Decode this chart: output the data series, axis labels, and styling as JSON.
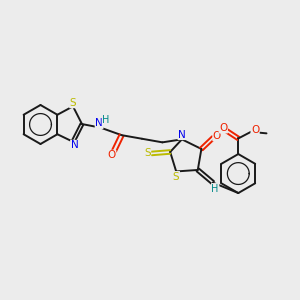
{
  "bg_color": "#ececec",
  "figsize": [
    3.0,
    3.0
  ],
  "dpi": 100,
  "bond_color": "#1a1a1a",
  "bond_lw": 1.4,
  "aromatic_lw": 0.9,
  "N_color": "#0000ee",
  "S_color": "#bbbb00",
  "O_color": "#ee2200",
  "H_color": "#008888",
  "font_size": 7.0,
  "xlim": [
    0,
    10
  ],
  "ylim": [
    0,
    10
  ]
}
